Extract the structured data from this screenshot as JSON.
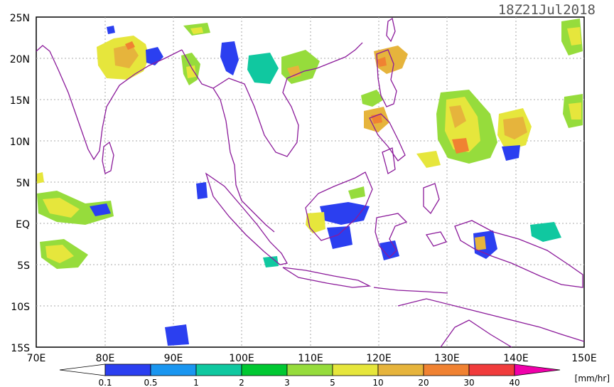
{
  "title": "18Z21Jul2018",
  "lat_labels": [
    "25N",
    "20N",
    "15N",
    "10N",
    "5N",
    "EQ",
    "5S",
    "10S",
    "15S"
  ],
  "lon_labels": [
    "70E",
    "80E",
    "90E",
    "100E",
    "110E",
    "120E",
    "130E",
    "140E",
    "150E"
  ],
  "units": "[mm/hr]",
  "colorbar": {
    "ticks": [
      "0.1",
      "0.5",
      "1",
      "2",
      "3",
      "5",
      "10",
      "20",
      "30",
      "40"
    ],
    "colors": [
      "#2b3ff0",
      "#1a96f0",
      "#10c8a0",
      "#00c832",
      "#96dc3c",
      "#e6e63c",
      "#e6b43c",
      "#f08232",
      "#f03c3c",
      "#f000aa"
    ]
  },
  "map": {
    "lon_range": [
      70,
      150
    ],
    "lat_range": [
      -15,
      25
    ],
    "coastline_color": "#8b1a9a",
    "grid": "dotted"
  }
}
